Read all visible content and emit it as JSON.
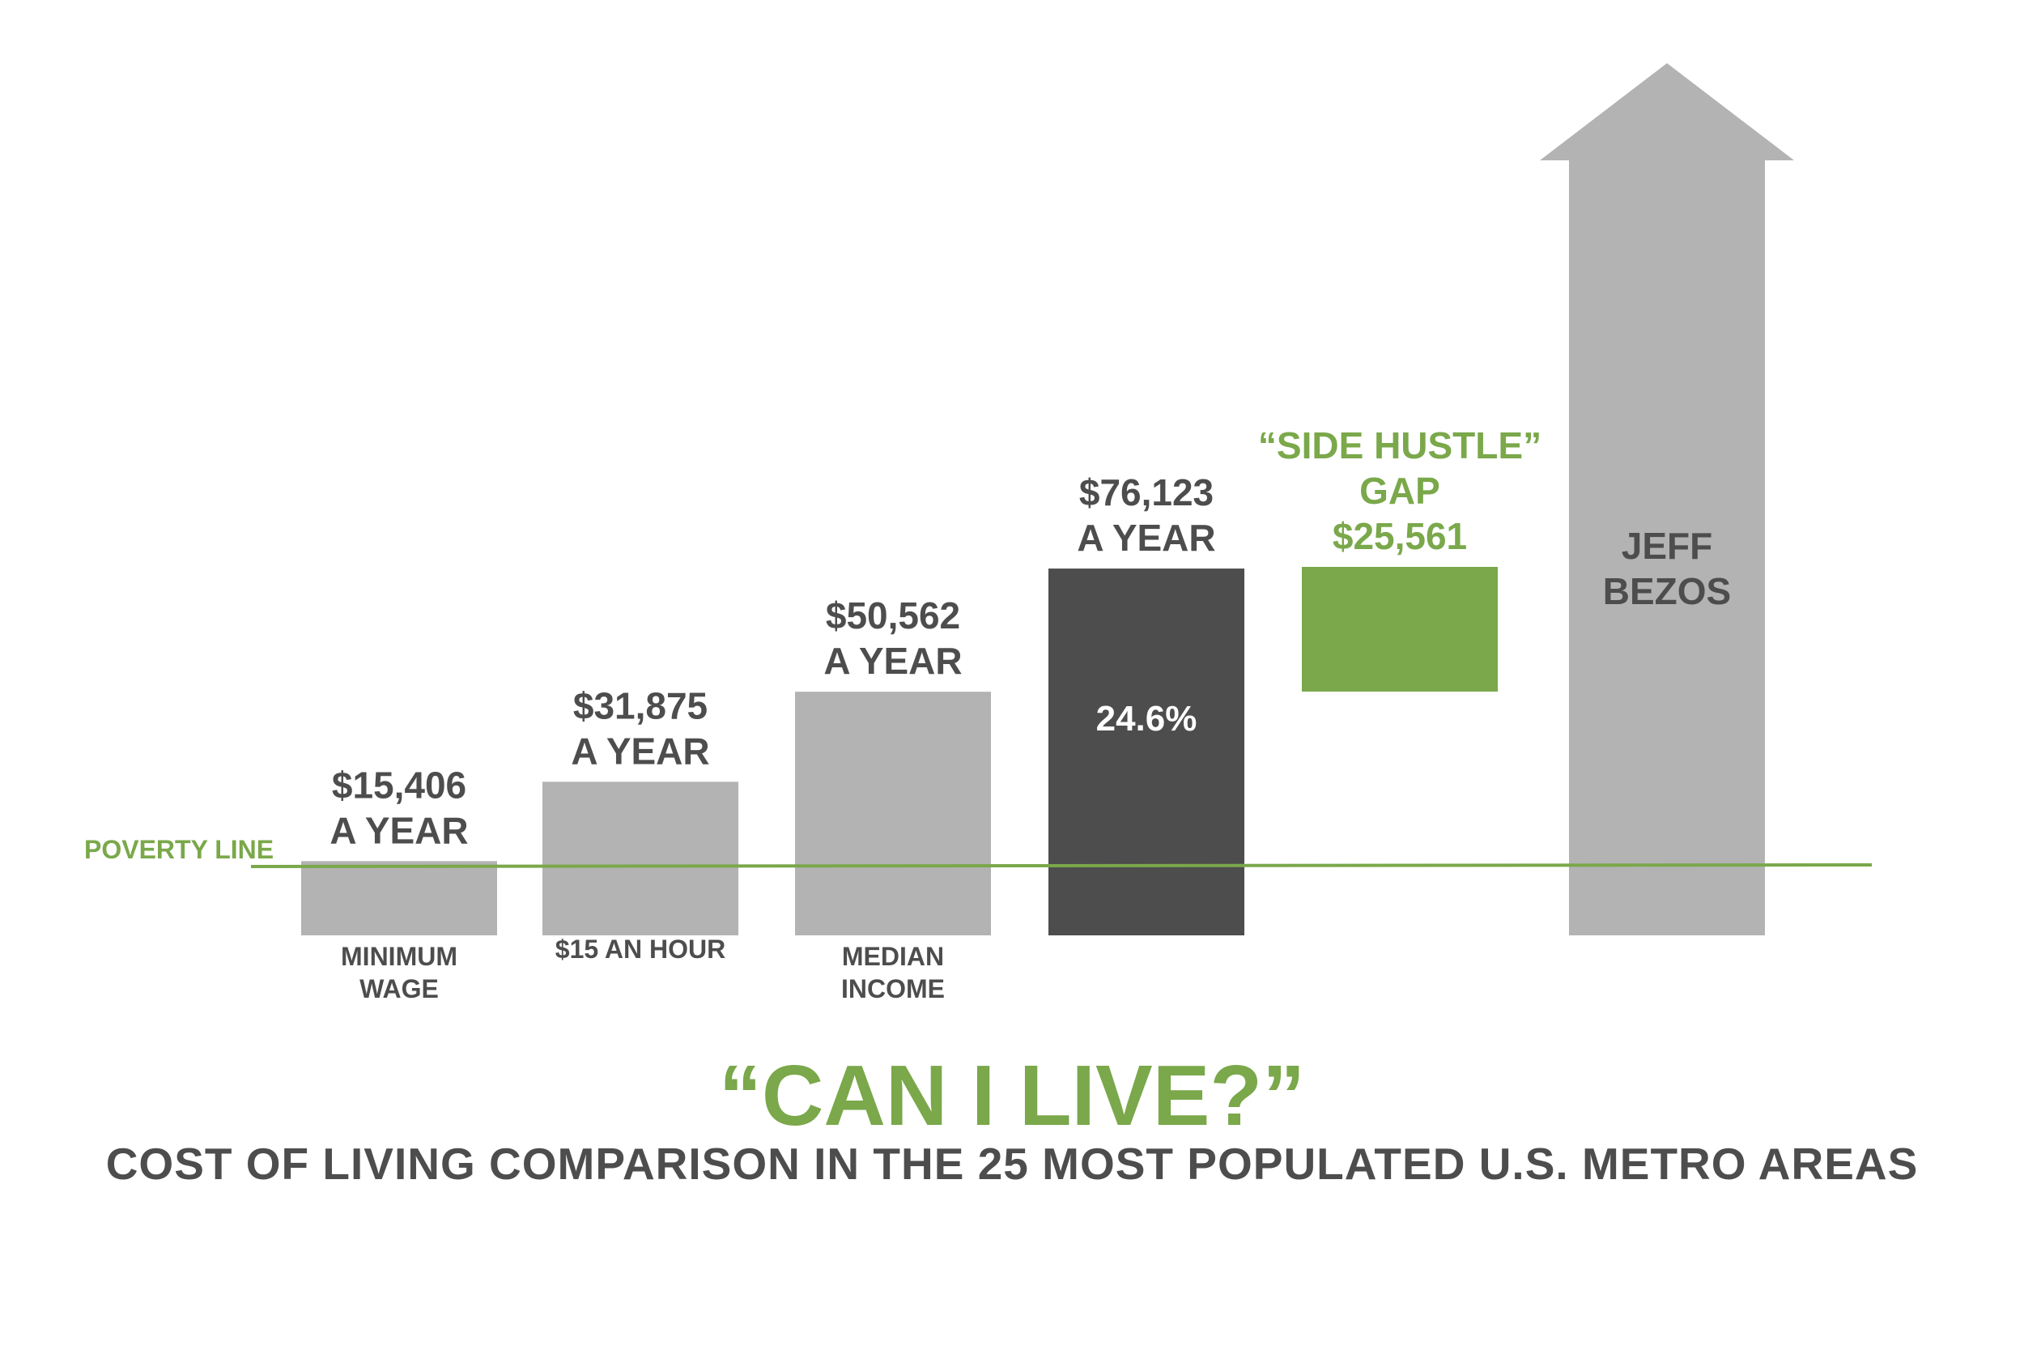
{
  "colors": {
    "gray_bar": "#b3b3b3",
    "dark_bar": "#4d4d4d",
    "green": "#7aa84a",
    "text_dark": "#4d4d4d",
    "white": "#ffffff"
  },
  "chart_data": {
    "type": "bar",
    "title": "“CAN I LIVE?”",
    "subtitle": "COST OF LIVING COMPARISON IN THE 25 MOST POPULATED U.S. METRO AREAS",
    "reference_line": {
      "label": "POVERTY LINE",
      "value": 12000
    },
    "categories": [
      "MINIMUM WAGE",
      "$15 AN HOUR",
      "MEDIAN INCOME",
      "",
      "",
      "JEFF BEZOS"
    ],
    "bars": [
      {
        "name": "MINIMUM WAGE",
        "value": 15406,
        "value_label": [
          "$15,406",
          "A YEAR"
        ],
        "category_label": [
          "MINIMUM",
          "WAGE"
        ],
        "style": "gray"
      },
      {
        "name": "$15 AN HOUR",
        "value": 31875,
        "value_label": [
          "$31,875",
          "A YEAR"
        ],
        "category_label": [
          "$15 AN HOUR"
        ],
        "style": "gray"
      },
      {
        "name": "MEDIAN INCOME",
        "value": 50562,
        "value_label": [
          "$50,562",
          "A YEAR"
        ],
        "category_label": [
          "MEDIAN",
          "INCOME"
        ],
        "style": "gray"
      },
      {
        "name": "COST OF LIVING",
        "value": 76123,
        "value_label": [
          "$76,123",
          "A YEAR"
        ],
        "inner_label": "24.6%",
        "category_label": [],
        "style": "dark"
      },
      {
        "name": "SIDE HUSTLE GAP",
        "value": 25561,
        "base": 50562,
        "value_label": [
          "“SIDE HUSTLE”",
          "GAP",
          "$25,561"
        ],
        "category_label": [],
        "style": "green"
      },
      {
        "name": "JEFF BEZOS",
        "value": null,
        "inner_label": [
          "JEFF",
          "BEZOS"
        ],
        "category_label": [],
        "style": "arrow"
      }
    ]
  }
}
